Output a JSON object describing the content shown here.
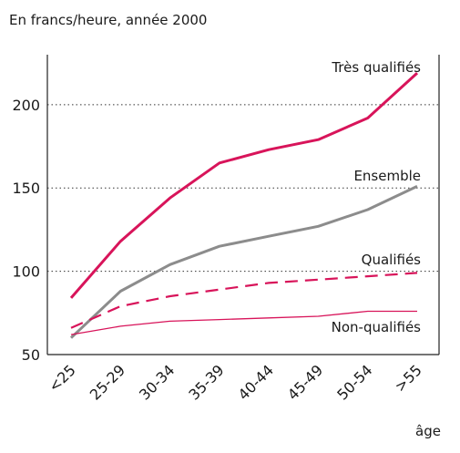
{
  "chart_data": {
    "type": "line",
    "subtitle": "En francs/heure, année 2000",
    "xlabel": "âge",
    "ylabel": "",
    "categories": [
      "<25",
      "25-29",
      "30-34",
      "35-39",
      "40-44",
      "45-49",
      "50-54",
      ">55"
    ],
    "ylim": [
      50,
      230
    ],
    "yticks": [
      50,
      100,
      150,
      200
    ],
    "grid": "horizontal dotted at 100, 150, 200",
    "legend": "labels placed next to line ends",
    "series": [
      {
        "name": "Très qualifiés",
        "color": "#d8145a",
        "style": "solid-thick",
        "values": [
          84,
          118,
          144,
          165,
          173,
          179,
          192,
          219
        ]
      },
      {
        "name": "Ensemble",
        "color": "#8c8c8c",
        "style": "solid-thick",
        "values": [
          60,
          88,
          104,
          115,
          121,
          127,
          137,
          151
        ]
      },
      {
        "name": "Qualifiés",
        "color": "#d8145a",
        "style": "dashed",
        "values": [
          66,
          79,
          85,
          89,
          93,
          95,
          97,
          99
        ]
      },
      {
        "name": "Non-qualifiés",
        "color": "#d8145a",
        "style": "solid-thin",
        "values": [
          62,
          67,
          70,
          71,
          72,
          73,
          76,
          76
        ]
      }
    ]
  }
}
